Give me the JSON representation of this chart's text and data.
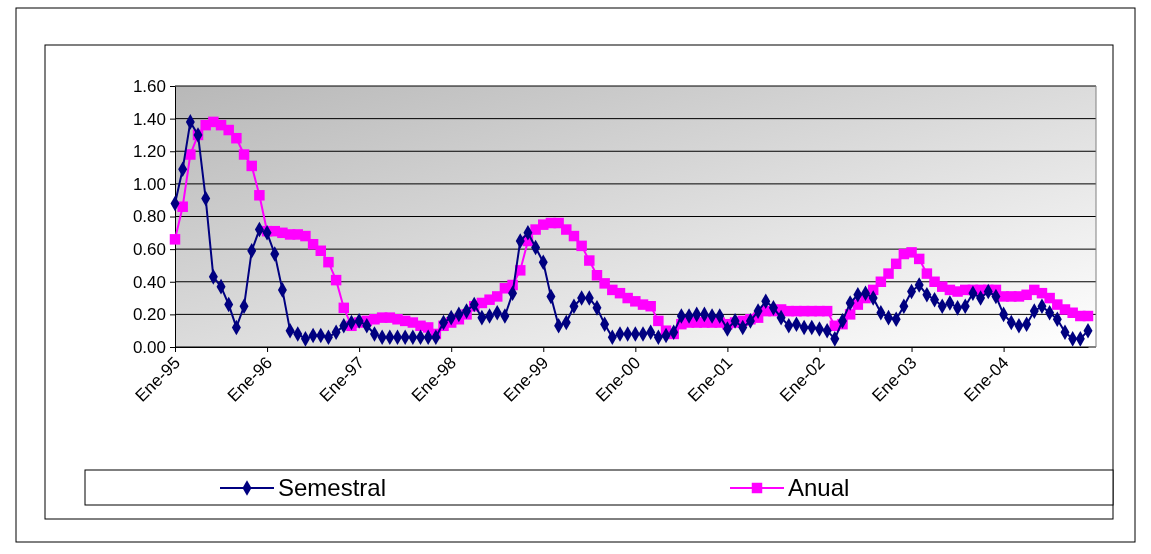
{
  "chart_data": {
    "type": "line",
    "categories": [
      "Ene-95",
      null,
      null,
      null,
      null,
      null,
      null,
      null,
      null,
      null,
      null,
      null,
      "Ene-96",
      null,
      null,
      null,
      null,
      null,
      null,
      null,
      null,
      null,
      null,
      null,
      "Ene-97",
      null,
      null,
      null,
      null,
      null,
      null,
      null,
      null,
      null,
      null,
      null,
      "Ene-98",
      null,
      null,
      null,
      null,
      null,
      null,
      null,
      null,
      null,
      null,
      null,
      "Ene-99",
      null,
      null,
      null,
      null,
      null,
      null,
      null,
      null,
      null,
      null,
      null,
      "Ene-00",
      null,
      null,
      null,
      null,
      null,
      null,
      null,
      null,
      null,
      null,
      null,
      "Ene-01",
      null,
      null,
      null,
      null,
      null,
      null,
      null,
      null,
      null,
      null,
      null,
      "Ene-02",
      null,
      null,
      null,
      null,
      null,
      null,
      null,
      null,
      null,
      null,
      null,
      "Ene-03",
      null,
      null,
      null,
      null,
      null,
      null,
      null,
      null,
      null,
      null,
      null,
      "Ene-04",
      null,
      null,
      null,
      null,
      null,
      null,
      null,
      null,
      null,
      null,
      null
    ],
    "series": [
      {
        "name": "Semestral",
        "color": "#000080",
        "marker": "diamond",
        "values": [
          0.88,
          1.09,
          1.38,
          1.3,
          0.91,
          0.43,
          0.37,
          0.26,
          0.12,
          0.25,
          0.59,
          0.72,
          0.7,
          0.57,
          0.35,
          0.1,
          0.08,
          0.05,
          0.07,
          0.07,
          0.06,
          0.09,
          0.13,
          0.15,
          0.16,
          0.13,
          0.08,
          0.06,
          0.06,
          0.06,
          0.06,
          0.06,
          0.06,
          0.06,
          0.06,
          0.15,
          0.18,
          0.2,
          0.22,
          0.26,
          0.18,
          0.19,
          0.21,
          0.19,
          0.33,
          0.65,
          0.7,
          0.61,
          0.52,
          0.31,
          0.13,
          0.15,
          0.25,
          0.3,
          0.3,
          0.24,
          0.14,
          0.06,
          0.08,
          0.08,
          0.08,
          0.08,
          0.09,
          0.06,
          0.07,
          0.09,
          0.19,
          0.19,
          0.2,
          0.2,
          0.19,
          0.19,
          0.11,
          0.16,
          0.12,
          0.16,
          0.22,
          0.28,
          0.24,
          0.18,
          0.13,
          0.14,
          0.12,
          0.12,
          0.11,
          0.1,
          0.05,
          0.16,
          0.27,
          0.32,
          0.33,
          0.3,
          0.21,
          0.18,
          0.17,
          0.25,
          0.34,
          0.38,
          0.32,
          0.29,
          0.25,
          0.27,
          0.24,
          0.25,
          0.33,
          0.3,
          0.34,
          0.31,
          0.2,
          0.15,
          0.13,
          0.14,
          0.22,
          0.25,
          0.21,
          0.17,
          0.09,
          0.05,
          0.05,
          0.1
        ]
      },
      {
        "name": "Anual",
        "color": "#ff00ff",
        "marker": "square",
        "values": [
          0.66,
          0.86,
          1.18,
          1.3,
          1.36,
          1.38,
          1.36,
          1.33,
          1.28,
          1.18,
          1.11,
          0.93,
          0.71,
          0.71,
          0.7,
          0.69,
          0.69,
          0.68,
          0.63,
          0.59,
          0.52,
          0.41,
          0.24,
          0.13,
          0.15,
          0.16,
          0.17,
          0.18,
          0.18,
          0.17,
          0.16,
          0.15,
          0.13,
          0.12,
          0.08,
          0.13,
          0.15,
          0.17,
          0.2,
          0.25,
          0.27,
          0.29,
          0.31,
          0.36,
          0.38,
          0.47,
          0.65,
          0.72,
          0.75,
          0.76,
          0.76,
          0.72,
          0.68,
          0.62,
          0.53,
          0.44,
          0.39,
          0.35,
          0.33,
          0.3,
          0.28,
          0.26,
          0.25,
          0.16,
          0.1,
          0.08,
          0.14,
          0.15,
          0.15,
          0.15,
          0.15,
          0.15,
          0.14,
          0.15,
          0.16,
          0.17,
          0.18,
          0.22,
          0.22,
          0.23,
          0.22,
          0.22,
          0.22,
          0.22,
          0.22,
          0.22,
          0.13,
          0.14,
          0.2,
          0.26,
          0.3,
          0.35,
          0.4,
          0.45,
          0.51,
          0.57,
          0.58,
          0.54,
          0.45,
          0.4,
          0.37,
          0.35,
          0.34,
          0.35,
          0.35,
          0.35,
          0.35,
          0.35,
          0.31,
          0.31,
          0.31,
          0.32,
          0.35,
          0.33,
          0.3,
          0.26,
          0.23,
          0.21,
          0.19,
          0.19
        ]
      }
    ],
    "ylim": [
      0,
      1.6
    ],
    "yticks": [
      {
        "value": 0,
        "label": "0.00"
      },
      {
        "value": 0.2,
        "label": "0.20"
      },
      {
        "value": 0.4,
        "label": "0.40"
      },
      {
        "value": 0.6,
        "label": "0.60"
      },
      {
        "value": 0.8,
        "label": "0.80"
      },
      {
        "value": 1,
        "label": "1.00"
      },
      {
        "value": 1.2,
        "label": "1.20"
      },
      {
        "value": 1.4,
        "label": "1.40"
      },
      {
        "value": 1.6,
        "label": "1.60"
      }
    ],
    "grid": "y",
    "legend": "bottom",
    "line_style": "solid"
  }
}
